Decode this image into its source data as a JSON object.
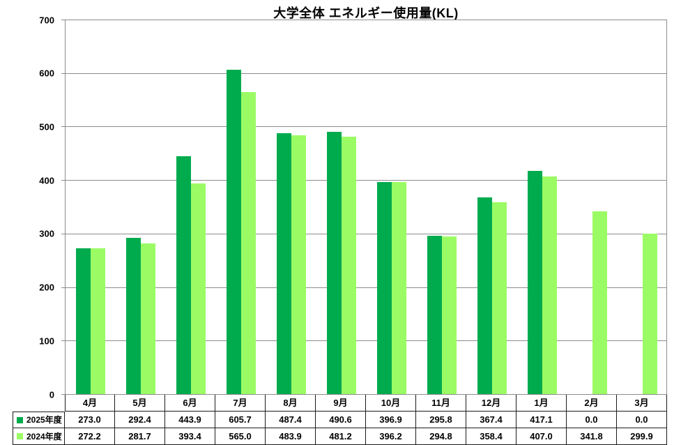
{
  "chart_data": {
    "type": "bar",
    "title": "大学全体 エネルギー使用量(KL)",
    "categories": [
      "4月",
      "5月",
      "6月",
      "7月",
      "8月",
      "9月",
      "10月",
      "11月",
      "12月",
      "1月",
      "2月",
      "3月"
    ],
    "series": [
      {
        "name": "2025年度",
        "color": "#00AB4E",
        "values": [
          273.0,
          292.4,
          443.9,
          605.7,
          487.4,
          490.6,
          396.9,
          295.8,
          367.4,
          417.1,
          0.0,
          0.0
        ]
      },
      {
        "name": "2024年度",
        "color": "#9BFB64",
        "values": [
          272.2,
          281.7,
          393.4,
          565.0,
          483.9,
          481.2,
          396.2,
          294.8,
          358.4,
          407.0,
          341.8,
          299.9
        ]
      }
    ],
    "xlabel": "",
    "ylabel": "",
    "ylim": [
      0,
      700
    ],
    "yticks": [
      0,
      100,
      200,
      300,
      400,
      500,
      600,
      700
    ],
    "grid": true,
    "gridline_color": "#8C8C8C",
    "table_border_color": "#1A1A1A",
    "legend_position": "data-table-left",
    "value_decimals": 1
  }
}
